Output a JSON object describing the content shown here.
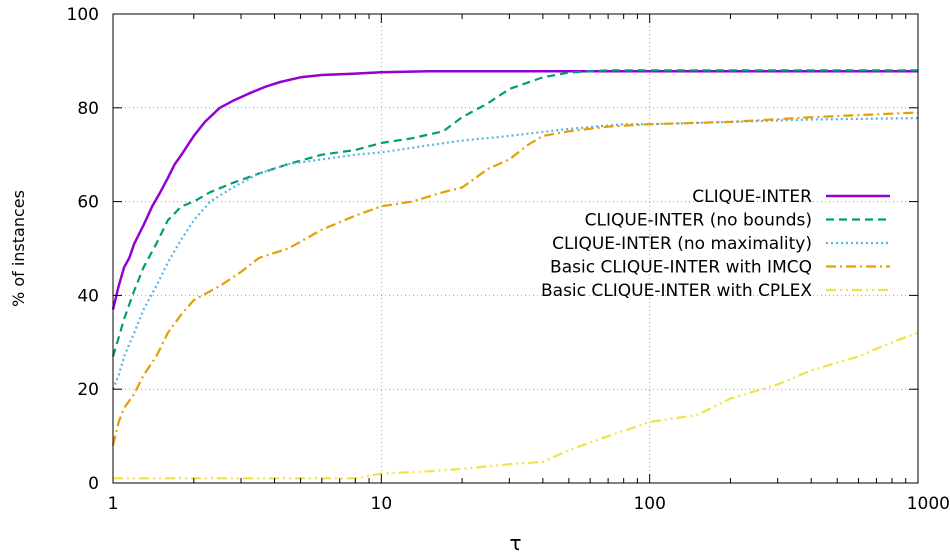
{
  "chart_data": {
    "type": "line",
    "title": "",
    "xlabel": "τ",
    "ylabel": "% of instances",
    "xscale": "log",
    "xlim": [
      1,
      1000
    ],
    "ylim": [
      0,
      100
    ],
    "xticks": [
      1,
      10,
      100,
      1000
    ],
    "xtick_labels": [
      "1",
      "10",
      "100",
      "1000"
    ],
    "yticks": [
      0,
      20,
      40,
      60,
      80,
      100
    ],
    "ytick_labels": [
      "0",
      "20",
      "40",
      "60",
      "80",
      "100"
    ],
    "grid": true,
    "legend_position": "center-right",
    "series": [
      {
        "name": "CLIQUE-INTER",
        "color": "#9400d3",
        "dash": "solid",
        "points": [
          [
            1,
            37
          ],
          [
            1.05,
            42
          ],
          [
            1.1,
            46
          ],
          [
            1.15,
            48
          ],
          [
            1.2,
            51
          ],
          [
            1.3,
            55
          ],
          [
            1.4,
            59
          ],
          [
            1.5,
            62
          ],
          [
            1.6,
            65
          ],
          [
            1.7,
            68
          ],
          [
            1.8,
            70
          ],
          [
            2,
            74
          ],
          [
            2.2,
            77
          ],
          [
            2.5,
            80
          ],
          [
            2.8,
            81.5
          ],
          [
            3.2,
            83
          ],
          [
            3.7,
            84.5
          ],
          [
            4.2,
            85.5
          ],
          [
            5,
            86.5
          ],
          [
            6,
            87
          ],
          [
            8,
            87.3
          ],
          [
            10,
            87.6
          ],
          [
            15,
            87.8
          ],
          [
            30,
            87.8
          ],
          [
            100,
            87.8
          ],
          [
            1000,
            87.8
          ]
        ]
      },
      {
        "name": "CLIQUE-INTER (no bounds)",
        "color": "#009e73",
        "dash": "8,5",
        "points": [
          [
            1,
            27
          ],
          [
            1.05,
            31
          ],
          [
            1.1,
            35
          ],
          [
            1.2,
            41
          ],
          [
            1.3,
            46
          ],
          [
            1.45,
            51
          ],
          [
            1.6,
            56
          ],
          [
            1.8,
            59
          ],
          [
            2,
            60
          ],
          [
            2.3,
            62
          ],
          [
            2.8,
            64
          ],
          [
            3.5,
            66
          ],
          [
            4.5,
            68
          ],
          [
            6,
            70
          ],
          [
            8,
            71
          ],
          [
            10,
            72.5
          ],
          [
            13,
            73.5
          ],
          [
            17,
            75
          ],
          [
            20,
            78
          ],
          [
            25,
            81
          ],
          [
            30,
            84
          ],
          [
            40,
            86.5
          ],
          [
            50,
            87.5
          ],
          [
            70,
            88
          ],
          [
            100,
            88
          ],
          [
            1000,
            88
          ]
        ]
      },
      {
        "name": "CLIQUE-INTER (no maximality)",
        "color": "#56b4e9",
        "dash": "2,3",
        "points": [
          [
            1,
            20
          ],
          [
            1.05,
            23
          ],
          [
            1.1,
            27
          ],
          [
            1.2,
            32
          ],
          [
            1.3,
            37
          ],
          [
            1.45,
            42
          ],
          [
            1.6,
            47
          ],
          [
            1.8,
            52
          ],
          [
            2,
            56
          ],
          [
            2.3,
            60
          ],
          [
            2.8,
            63
          ],
          [
            3.5,
            66
          ],
          [
            4.5,
            68
          ],
          [
            6,
            69
          ],
          [
            8,
            70
          ],
          [
            10,
            70.5
          ],
          [
            15,
            72
          ],
          [
            20,
            73
          ],
          [
            30,
            74
          ],
          [
            50,
            75.5
          ],
          [
            80,
            76.5
          ],
          [
            100,
            76.5
          ],
          [
            200,
            77
          ],
          [
            400,
            77.5
          ],
          [
            1000,
            77.8
          ]
        ]
      },
      {
        "name": "Basic CLIQUE-INTER  with IMCQ",
        "color": "#e69f00",
        "dash": "10,4,2,4",
        "points": [
          [
            1,
            8
          ],
          [
            1.05,
            13
          ],
          [
            1.1,
            16
          ],
          [
            1.2,
            19
          ],
          [
            1.3,
            23
          ],
          [
            1.45,
            27
          ],
          [
            1.6,
            32
          ],
          [
            1.8,
            36
          ],
          [
            2,
            39
          ],
          [
            2.5,
            42
          ],
          [
            3,
            45
          ],
          [
            3.5,
            48
          ],
          [
            4.5,
            50
          ],
          [
            6,
            54
          ],
          [
            8,
            57
          ],
          [
            10,
            59
          ],
          [
            13,
            60
          ],
          [
            17,
            62
          ],
          [
            20,
            63
          ],
          [
            25,
            67
          ],
          [
            30,
            69
          ],
          [
            35,
            72
          ],
          [
            40,
            74
          ],
          [
            50,
            75
          ],
          [
            70,
            76
          ],
          [
            100,
            76.5
          ],
          [
            200,
            77
          ],
          [
            400,
            78
          ],
          [
            1000,
            79
          ]
        ]
      },
      {
        "name": "Basic CLIQUE-INTER  with CPLEX",
        "color": "#f0e442",
        "dash": "10,4,2,4,2,4",
        "points": [
          [
            1,
            1
          ],
          [
            3,
            1
          ],
          [
            8,
            1
          ],
          [
            10,
            2
          ],
          [
            15,
            2.5
          ],
          [
            20,
            3
          ],
          [
            30,
            4
          ],
          [
            40,
            4.5
          ],
          [
            50,
            7
          ],
          [
            70,
            10
          ],
          [
            100,
            13
          ],
          [
            150,
            14.5
          ],
          [
            200,
            18
          ],
          [
            300,
            21
          ],
          [
            400,
            24
          ],
          [
            600,
            27
          ],
          [
            800,
            30
          ],
          [
            1000,
            32
          ]
        ]
      }
    ]
  }
}
